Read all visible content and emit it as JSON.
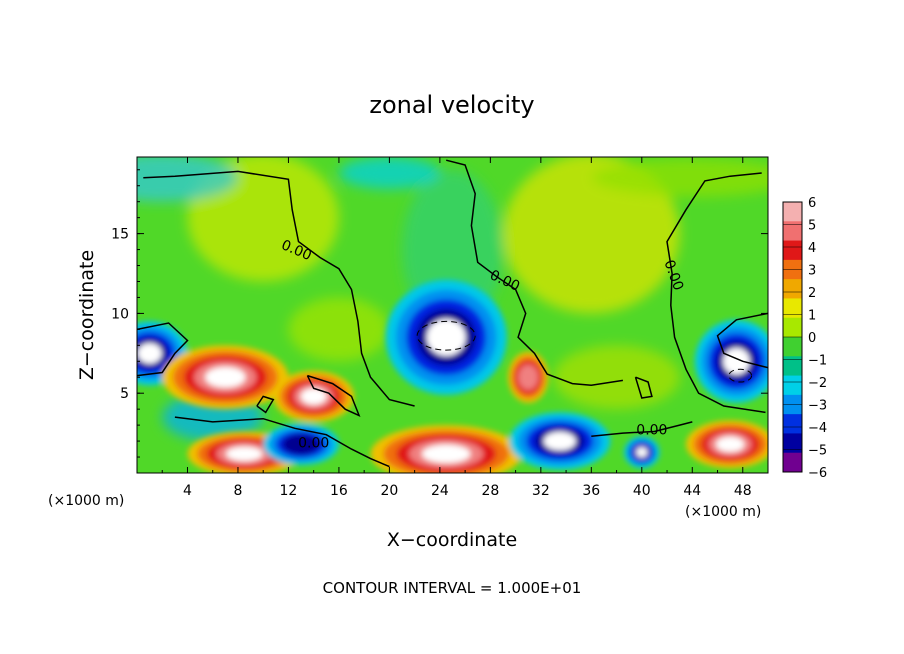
{
  "chart_data": {
    "type": "heatmap",
    "title": "zonal velocity",
    "xlabel": "X−coordinate",
    "ylabel": "Z−coordinate",
    "x_unit_left": "(×1000 m)",
    "x_unit_right": "(×1000 m)",
    "xlim": [
      0,
      50
    ],
    "ylim": [
      0,
      19.8
    ],
    "x_ticks": [
      4,
      8,
      12,
      16,
      20,
      24,
      28,
      32,
      36,
      40,
      44,
      48
    ],
    "x_tick_labels": [
      "4",
      "8",
      "12",
      "16",
      "20",
      "24",
      "28",
      "32",
      "36",
      "40",
      "44",
      "48"
    ],
    "y_ticks": [
      5,
      10,
      15
    ],
    "y_tick_labels": [
      "5",
      "10",
      "15"
    ],
    "colorbar": {
      "levels": [
        6,
        5,
        4,
        3,
        2,
        1,
        0,
        -1,
        -2,
        -3,
        -4,
        -5,
        -6
      ],
      "labels": [
        "6",
        "5",
        "4",
        "3",
        "2",
        "1",
        "0",
        "−1",
        "−2",
        "−3",
        "−4",
        "−5",
        "−6"
      ],
      "colors": [
        "#f4b0b0",
        "#f07070",
        "#e01818",
        "#f07010",
        "#f0a800",
        "#e8e800",
        "#a8e800",
        "#40d030",
        "#00c088",
        "#00d0e8",
        "#0090f0",
        "#0030e0",
        "#0000a0",
        "#700090"
      ]
    },
    "contour_label": "0.00",
    "contour_interval_text": "CONTOUR INTERVAL = 1.000E+01",
    "features": [
      {
        "kind": "negative-core",
        "x": 24.5,
        "z": 8.5,
        "rx": 4.8,
        "rz": 3.6,
        "value": -6
      },
      {
        "kind": "negative-core",
        "x": 47.5,
        "z": 7.0,
        "rx": 3.3,
        "rz": 2.6,
        "value": -6
      },
      {
        "kind": "negative-core",
        "x": 1.0,
        "z": 7.5,
        "rx": 3.0,
        "rz": 2.0,
        "value": -5
      },
      {
        "kind": "positive-core",
        "x": 7.0,
        "z": 6.0,
        "rx": 5.0,
        "rz": 2.0,
        "value": 5
      },
      {
        "kind": "positive-core",
        "x": 14.0,
        "z": 4.8,
        "rx": 3.2,
        "rz": 1.6,
        "value": 5
      },
      {
        "kind": "positive-core",
        "x": 31.0,
        "z": 6.0,
        "rx": 1.6,
        "rz": 1.6,
        "value": 4
      },
      {
        "kind": "positive-core",
        "x": 24.5,
        "z": 1.2,
        "rx": 6.0,
        "rz": 1.8,
        "value": 6
      },
      {
        "kind": "positive-core",
        "x": 47.0,
        "z": 1.8,
        "rx": 3.5,
        "rz": 1.5,
        "value": 5
      },
      {
        "kind": "positive-core",
        "x": 8.5,
        "z": 1.2,
        "rx": 4.5,
        "rz": 1.4,
        "value": 5
      },
      {
        "kind": "negative-core",
        "x": 33.5,
        "z": 2.0,
        "rx": 4.0,
        "rz": 1.8,
        "value": -5
      },
      {
        "kind": "negative-core",
        "x": 13.0,
        "z": 1.8,
        "rx": 3.0,
        "rz": 1.3,
        "value": -4
      },
      {
        "kind": "negative-core",
        "x": 40.0,
        "z": 1.3,
        "rx": 1.4,
        "rz": 1.0,
        "value": -5
      }
    ]
  }
}
